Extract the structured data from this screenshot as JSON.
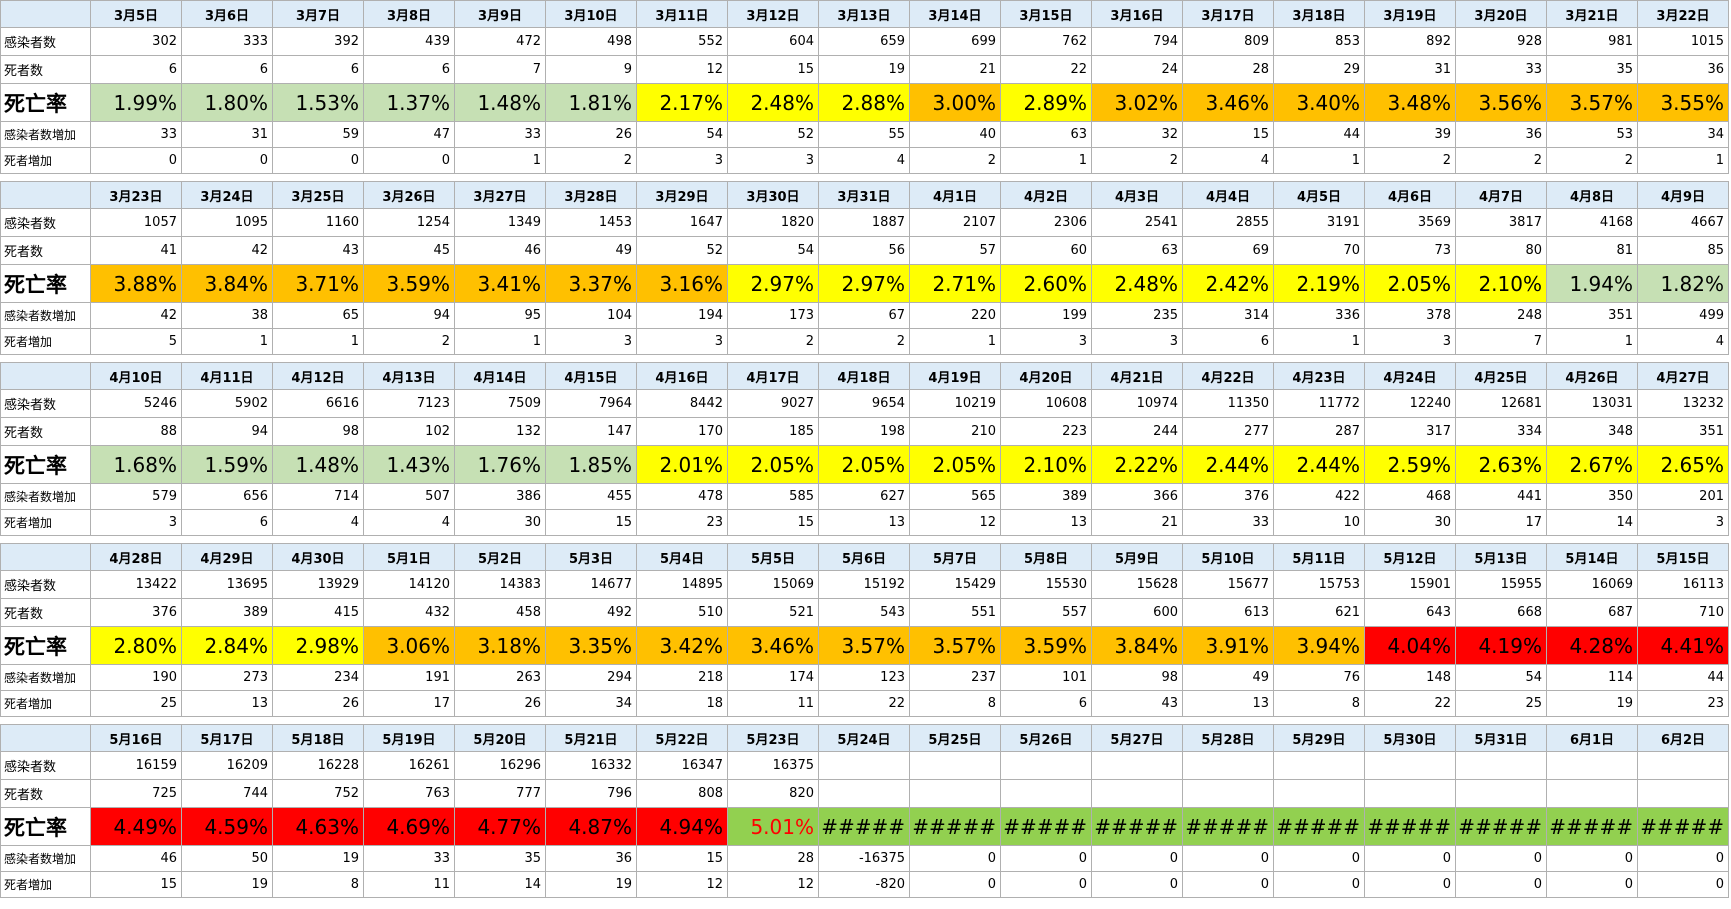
{
  "row_labels": [
    "感染者数",
    "死者数",
    "死亡率",
    "感染者数増加",
    "死者増加"
  ],
  "blocks": [
    {
      "dates": [
        "3月5日",
        "3月6日",
        "3月7日",
        "3月8日",
        "3月9日",
        "3月10日",
        "3月11日",
        "3月12日",
        "3月13日",
        "3月14日",
        "3月15日",
        "3月16日",
        "3月17日",
        "3月18日",
        "3月19日",
        "3月20日",
        "3月21日",
        "3月22日"
      ],
      "infected": [
        "302",
        "333",
        "392",
        "439",
        "472",
        "498",
        "552",
        "604",
        "659",
        "699",
        "762",
        "794",
        "809",
        "853",
        "892",
        "928",
        "981",
        "1015"
      ],
      "deaths": [
        "6",
        "6",
        "6",
        "6",
        "7",
        "9",
        "12",
        "15",
        "19",
        "21",
        "22",
        "24",
        "28",
        "29",
        "31",
        "33",
        "35",
        "36"
      ],
      "rate": [
        "1.99%",
        "1.80%",
        "1.53%",
        "1.37%",
        "1.48%",
        "1.81%",
        "2.17%",
        "2.48%",
        "2.88%",
        "3.00%",
        "2.89%",
        "3.02%",
        "3.46%",
        "3.40%",
        "3.48%",
        "3.56%",
        "3.57%",
        "3.55%"
      ],
      "rate_fill": [
        "#c6e0b4",
        "#c6e0b4",
        "#c6e0b4",
        "#c6e0b4",
        "#c6e0b4",
        "#c6e0b4",
        "#ffff00",
        "#ffff00",
        "#ffff00",
        "#ffc000",
        "#ffff00",
        "#ffc000",
        "#ffc000",
        "#ffc000",
        "#ffc000",
        "#ffc000",
        "#ffc000",
        "#ffc000"
      ],
      "infected_increase": [
        "33",
        "31",
        "59",
        "47",
        "33",
        "26",
        "54",
        "52",
        "55",
        "40",
        "63",
        "32",
        "15",
        "44",
        "39",
        "36",
        "53",
        "34"
      ],
      "death_increase": [
        "0",
        "0",
        "0",
        "0",
        "1",
        "2",
        "3",
        "3",
        "4",
        "2",
        "1",
        "2",
        "4",
        "1",
        "2",
        "2",
        "2",
        "1"
      ]
    },
    {
      "dates": [
        "3月23日",
        "3月24日",
        "3月25日",
        "3月26日",
        "3月27日",
        "3月28日",
        "3月29日",
        "3月30日",
        "3月31日",
        "4月1日",
        "4月2日",
        "4月3日",
        "4月4日",
        "4月5日",
        "4月6日",
        "4月7日",
        "4月8日",
        "4月9日"
      ],
      "infected": [
        "1057",
        "1095",
        "1160",
        "1254",
        "1349",
        "1453",
        "1647",
        "1820",
        "1887",
        "2107",
        "2306",
        "2541",
        "2855",
        "3191",
        "3569",
        "3817",
        "4168",
        "4667"
      ],
      "deaths": [
        "41",
        "42",
        "43",
        "45",
        "46",
        "49",
        "52",
        "54",
        "56",
        "57",
        "60",
        "63",
        "69",
        "70",
        "73",
        "80",
        "81",
        "85"
      ],
      "rate": [
        "3.88%",
        "3.84%",
        "3.71%",
        "3.59%",
        "3.41%",
        "3.37%",
        "3.16%",
        "2.97%",
        "2.97%",
        "2.71%",
        "2.60%",
        "2.48%",
        "2.42%",
        "2.19%",
        "2.05%",
        "2.10%",
        "1.94%",
        "1.82%"
      ],
      "rate_fill": [
        "#ffc000",
        "#ffc000",
        "#ffc000",
        "#ffc000",
        "#ffc000",
        "#ffc000",
        "#ffc000",
        "#ffff00",
        "#ffff00",
        "#ffff00",
        "#ffff00",
        "#ffff00",
        "#ffff00",
        "#ffff00",
        "#ffff00",
        "#ffff00",
        "#c6e0b4",
        "#c6e0b4"
      ],
      "infected_increase": [
        "42",
        "38",
        "65",
        "94",
        "95",
        "104",
        "194",
        "173",
        "67",
        "220",
        "199",
        "235",
        "314",
        "336",
        "378",
        "248",
        "351",
        "499"
      ],
      "death_increase": [
        "5",
        "1",
        "1",
        "2",
        "1",
        "3",
        "3",
        "2",
        "2",
        "1",
        "3",
        "3",
        "6",
        "1",
        "3",
        "7",
        "1",
        "4"
      ]
    },
    {
      "dates": [
        "4月10日",
        "4月11日",
        "4月12日",
        "4月13日",
        "4月14日",
        "4月15日",
        "4月16日",
        "4月17日",
        "4月18日",
        "4月19日",
        "4月20日",
        "4月21日",
        "4月22日",
        "4月23日",
        "4月24日",
        "4月25日",
        "4月26日",
        "4月27日"
      ],
      "infected": [
        "5246",
        "5902",
        "6616",
        "7123",
        "7509",
        "7964",
        "8442",
        "9027",
        "9654",
        "10219",
        "10608",
        "10974",
        "11350",
        "11772",
        "12240",
        "12681",
        "13031",
        "13232"
      ],
      "deaths": [
        "88",
        "94",
        "98",
        "102",
        "132",
        "147",
        "170",
        "185",
        "198",
        "210",
        "223",
        "244",
        "277",
        "287",
        "317",
        "334",
        "348",
        "351"
      ],
      "rate": [
        "1.68%",
        "1.59%",
        "1.48%",
        "1.43%",
        "1.76%",
        "1.85%",
        "2.01%",
        "2.05%",
        "2.05%",
        "2.05%",
        "2.10%",
        "2.22%",
        "2.44%",
        "2.44%",
        "2.59%",
        "2.63%",
        "2.67%",
        "2.65%"
      ],
      "rate_fill": [
        "#c6e0b4",
        "#c6e0b4",
        "#c6e0b4",
        "#c6e0b4",
        "#c6e0b4",
        "#c6e0b4",
        "#ffff00",
        "#ffff00",
        "#ffff00",
        "#ffff00",
        "#ffff00",
        "#ffff00",
        "#ffff00",
        "#ffff00",
        "#ffff00",
        "#ffff00",
        "#ffff00",
        "#ffff00"
      ],
      "infected_increase": [
        "579",
        "656",
        "714",
        "507",
        "386",
        "455",
        "478",
        "585",
        "627",
        "565",
        "389",
        "366",
        "376",
        "422",
        "468",
        "441",
        "350",
        "201"
      ],
      "death_increase": [
        "3",
        "6",
        "4",
        "4",
        "30",
        "15",
        "23",
        "15",
        "13",
        "12",
        "13",
        "21",
        "33",
        "10",
        "30",
        "17",
        "14",
        "3"
      ]
    },
    {
      "dates": [
        "4月28日",
        "4月29日",
        "4月30日",
        "5月1日",
        "5月2日",
        "5月3日",
        "5月4日",
        "5月5日",
        "5月6日",
        "5月7日",
        "5月8日",
        "5月9日",
        "5月10日",
        "5月11日",
        "5月12日",
        "5月13日",
        "5月14日",
        "5月15日"
      ],
      "infected": [
        "13422",
        "13695",
        "13929",
        "14120",
        "14383",
        "14677",
        "14895",
        "15069",
        "15192",
        "15429",
        "15530",
        "15628",
        "15677",
        "15753",
        "15901",
        "15955",
        "16069",
        "16113"
      ],
      "deaths": [
        "376",
        "389",
        "415",
        "432",
        "458",
        "492",
        "510",
        "521",
        "543",
        "551",
        "557",
        "600",
        "613",
        "621",
        "643",
        "668",
        "687",
        "710"
      ],
      "rate": [
        "2.80%",
        "2.84%",
        "2.98%",
        "3.06%",
        "3.18%",
        "3.35%",
        "3.42%",
        "3.46%",
        "3.57%",
        "3.57%",
        "3.59%",
        "3.84%",
        "3.91%",
        "3.94%",
        "4.04%",
        "4.19%",
        "4.28%",
        "4.41%"
      ],
      "rate_fill": [
        "#ffff00",
        "#ffff00",
        "#ffff00",
        "#ffc000",
        "#ffc000",
        "#ffc000",
        "#ffc000",
        "#ffc000",
        "#ffc000",
        "#ffc000",
        "#ffc000",
        "#ffc000",
        "#ffc000",
        "#ffc000",
        "#ff0000",
        "#ff0000",
        "#ff0000",
        "#ff0000"
      ],
      "infected_increase": [
        "190",
        "273",
        "234",
        "191",
        "263",
        "294",
        "218",
        "174",
        "123",
        "237",
        "101",
        "98",
        "49",
        "76",
        "148",
        "54",
        "114",
        "44"
      ],
      "death_increase": [
        "25",
        "13",
        "26",
        "17",
        "26",
        "34",
        "18",
        "11",
        "22",
        "8",
        "6",
        "43",
        "13",
        "8",
        "22",
        "25",
        "19",
        "23"
      ]
    },
    {
      "dates": [
        "5月16日",
        "5月17日",
        "5月18日",
        "5月19日",
        "5月20日",
        "5月21日",
        "5月22日",
        "5月23日",
        "5月24日",
        "5月25日",
        "5月26日",
        "5月27日",
        "5月28日",
        "5月29日",
        "5月30日",
        "5月31日",
        "6月1日",
        "6月2日"
      ],
      "infected": [
        "16159",
        "16209",
        "16228",
        "16261",
        "16296",
        "16332",
        "16347",
        "16375",
        null,
        null,
        null,
        null,
        null,
        null,
        null,
        null,
        null,
        null
      ],
      "deaths": [
        "725",
        "744",
        "752",
        "763",
        "777",
        "796",
        "808",
        "820",
        null,
        null,
        null,
        null,
        null,
        null,
        null,
        null,
        null,
        null
      ],
      "rate": [
        "4.49%",
        "4.59%",
        "4.63%",
        "4.69%",
        "4.77%",
        "4.87%",
        "4.94%",
        "5.01%",
        "#####",
        "#####",
        "#####",
        "#####",
        "#####",
        "#####",
        "#####",
        "#####",
        "#####",
        "#####"
      ],
      "rate_fill": [
        "#ff0000",
        "#ff0000",
        "#ff0000",
        "#ff0000",
        "#ff0000",
        "#ff0000",
        "#ff0000",
        "#92d050",
        "#92d050",
        "#92d050",
        "#92d050",
        "#92d050",
        "#92d050",
        "#92d050",
        "#92d050",
        "#92d050",
        "#92d050",
        "#92d050"
      ],
      "rate_ink": [
        "#000000",
        "#000000",
        "#000000",
        "#000000",
        "#000000",
        "#000000",
        "#000000",
        "#ff0000",
        "#000000",
        "#000000",
        "#000000",
        "#000000",
        "#000000",
        "#000000",
        "#000000",
        "#000000",
        "#000000",
        "#000000"
      ],
      "infected_increase": [
        "46",
        "50",
        "19",
        "33",
        "35",
        "36",
        "15",
        "28",
        "-16375",
        "0",
        "0",
        "0",
        "0",
        "0",
        "0",
        "0",
        "0",
        "0"
      ],
      "death_increase": [
        "15",
        "19",
        "8",
        "11",
        "14",
        "19",
        "12",
        "12",
        "-820",
        "0",
        "0",
        "0",
        "0",
        "0",
        "0",
        "0",
        "0",
        "0"
      ]
    }
  ]
}
